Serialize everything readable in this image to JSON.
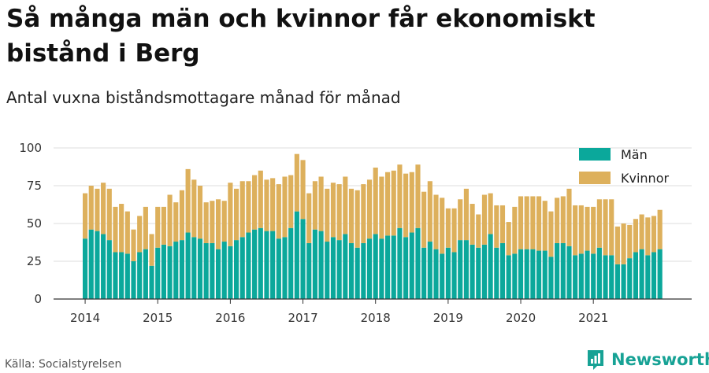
{
  "title": "Så många män och kvinnor får ekonomiskt bistånd i Berg",
  "subtitle": "Antal vuxna biståndsmottagare månad för månad",
  "source": "Källa: Socialstyrelsen",
  "brand": "Newsworthy",
  "colors": {
    "men": "#0ba89b",
    "women": "#ddb05c",
    "grid": "#dddddd",
    "axis": "#333333",
    "brand": "#17a295"
  },
  "chart_data": {
    "type": "bar",
    "stacked": true,
    "ylim": [
      0,
      100
    ],
    "yticks": [
      0,
      25,
      50,
      75,
      100
    ],
    "xlim": [
      2014,
      2022
    ],
    "xticks": [
      "2014",
      "2015",
      "2016",
      "2017",
      "2018",
      "2019",
      "2020",
      "2021"
    ],
    "legend_position": "top-right",
    "grid": true,
    "categories": [
      "2014-01",
      "2014-02",
      "2014-03",
      "2014-04",
      "2014-05",
      "2014-06",
      "2014-07",
      "2014-08",
      "2014-09",
      "2014-10",
      "2014-11",
      "2014-12",
      "2015-01",
      "2015-02",
      "2015-03",
      "2015-04",
      "2015-05",
      "2015-06",
      "2015-07",
      "2015-08",
      "2015-09",
      "2015-10",
      "2015-11",
      "2015-12",
      "2016-01",
      "2016-02",
      "2016-03",
      "2016-04",
      "2016-05",
      "2016-06",
      "2016-07",
      "2016-08",
      "2016-09",
      "2016-10",
      "2016-11",
      "2016-12",
      "2017-01",
      "2017-02",
      "2017-03",
      "2017-04",
      "2017-05",
      "2017-06",
      "2017-07",
      "2017-08",
      "2017-09",
      "2017-10",
      "2017-11",
      "2017-12",
      "2018-01",
      "2018-02",
      "2018-03",
      "2018-04",
      "2018-05",
      "2018-06",
      "2018-07",
      "2018-08",
      "2018-09",
      "2018-10",
      "2018-11",
      "2018-12",
      "2019-01",
      "2019-02",
      "2019-03",
      "2019-04",
      "2019-05",
      "2019-06",
      "2019-07",
      "2019-08",
      "2019-09",
      "2019-10",
      "2019-11",
      "2019-12",
      "2020-01",
      "2020-02",
      "2020-03",
      "2020-04",
      "2020-05",
      "2020-06",
      "2020-07",
      "2020-08",
      "2020-09",
      "2020-10",
      "2020-11",
      "2020-12",
      "2021-01",
      "2021-02",
      "2021-03",
      "2021-04",
      "2021-05",
      "2021-06",
      "2021-07",
      "2021-08",
      "2021-09",
      "2021-10",
      "2021-11",
      "2021-12"
    ],
    "series": [
      {
        "name": "Män",
        "values": [
          40,
          46,
          45,
          43,
          39,
          31,
          31,
          30,
          25,
          31,
          33,
          22,
          34,
          36,
          35,
          38,
          39,
          44,
          41,
          40,
          37,
          37,
          33,
          38,
          35,
          39,
          41,
          44,
          46,
          47,
          45,
          45,
          40,
          41,
          47,
          58,
          53,
          37,
          46,
          45,
          38,
          41,
          39,
          43,
          37,
          34,
          37,
          40,
          43,
          40,
          42,
          42,
          47,
          41,
          44,
          47,
          34,
          38,
          33,
          30,
          34,
          31,
          39,
          39,
          36,
          34,
          36,
          43,
          34,
          37,
          29,
          30,
          33,
          33,
          33,
          32,
          32,
          28,
          37,
          37,
          35,
          29,
          30,
          32,
          30,
          34,
          29,
          29,
          23,
          23,
          27,
          31,
          33,
          29,
          31,
          33
        ]
      },
      {
        "name": "Kvinnor",
        "values": [
          30,
          29,
          28,
          34,
          34,
          30,
          32,
          28,
          21,
          24,
          28,
          21,
          27,
          25,
          34,
          26,
          33,
          42,
          38,
          35,
          27,
          28,
          33,
          27,
          42,
          34,
          37,
          34,
          36,
          38,
          34,
          35,
          36,
          40,
          35,
          38,
          39,
          33,
          32,
          36,
          35,
          36,
          37,
          38,
          36,
          38,
          39,
          39,
          44,
          41,
          42,
          43,
          42,
          42,
          40,
          42,
          37,
          40,
          36,
          37,
          26,
          29,
          27,
          34,
          27,
          22,
          33,
          27,
          28,
          25,
          22,
          31,
          35,
          35,
          35,
          36,
          33,
          30,
          30,
          31,
          38,
          33,
          32,
          29,
          31,
          32,
          37,
          37,
          25,
          27,
          22,
          22,
          23,
          25,
          24,
          26
        ]
      }
    ]
  }
}
